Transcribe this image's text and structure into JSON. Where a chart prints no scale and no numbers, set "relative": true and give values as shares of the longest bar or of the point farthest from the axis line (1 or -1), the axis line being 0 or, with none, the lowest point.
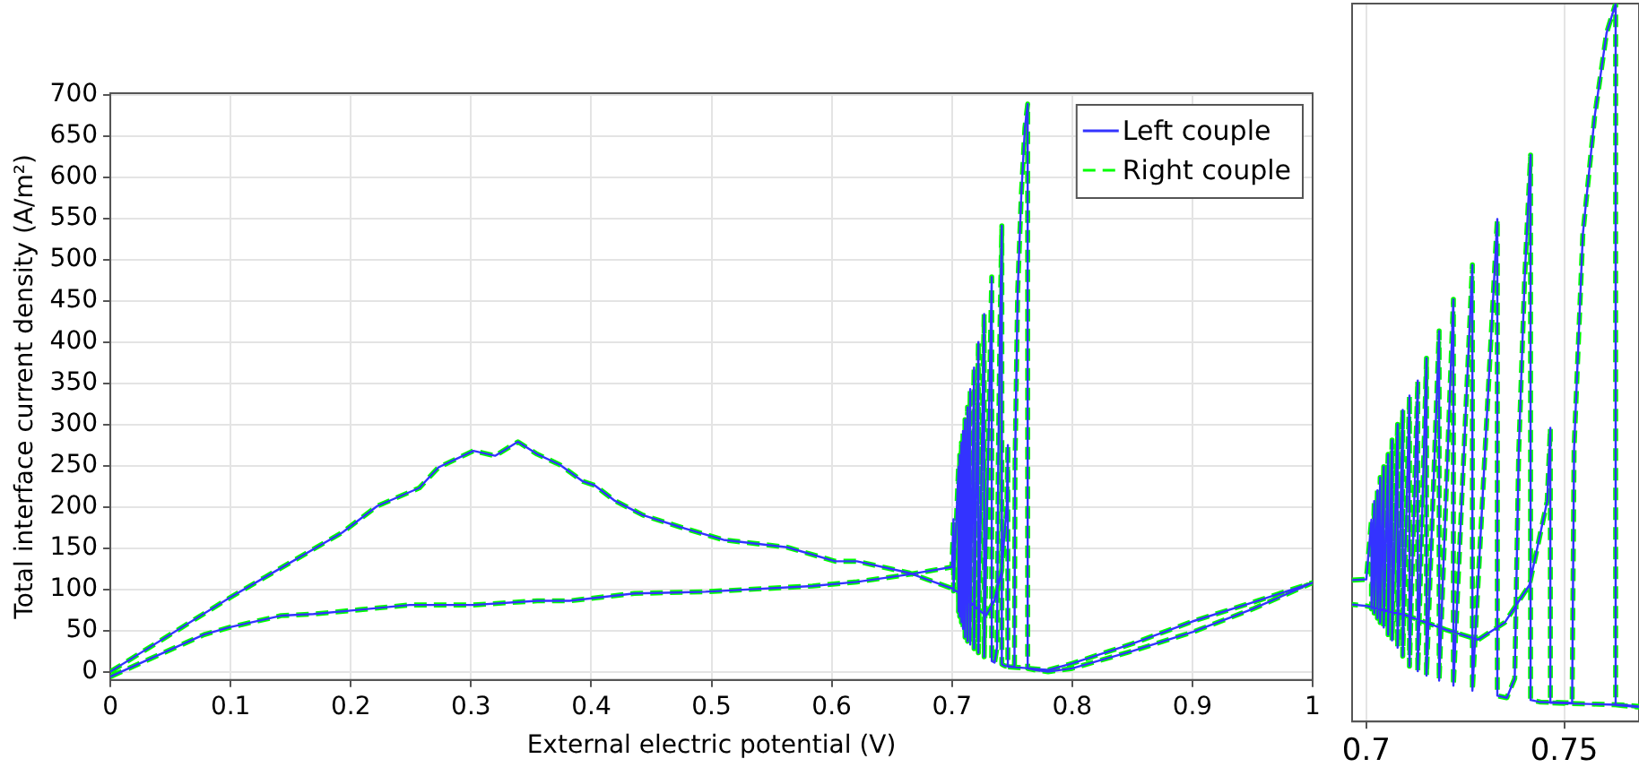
{
  "chart_data": [
    {
      "type": "line",
      "xlabel": "External electric potential (V)",
      "ylabel": "Total interface current density (A/m²)",
      "xlim": [
        0,
        1
      ],
      "ylim": [
        -10,
        702
      ],
      "xticks": [
        0,
        0.1,
        0.2,
        0.3,
        0.4,
        0.5,
        0.6,
        0.7,
        0.8,
        0.9,
        1
      ],
      "yticks": [
        0,
        50,
        100,
        150,
        200,
        250,
        300,
        350,
        400,
        450,
        500,
        550,
        600,
        650,
        700
      ],
      "grid": true,
      "legend": "top right",
      "series": [
        {
          "name": "Left couple",
          "color": "#3333ff",
          "line_style": "solid",
          "x": [
            0,
            0.078,
            0.0996,
            0.142,
            0.169,
            0.206,
            0.249,
            0.302,
            0.355,
            0.382,
            0.436,
            0.495,
            0.584,
            0.621,
            0.664,
            0.7,
            0.7013,
            0.7013,
            0.7055,
            0.7055,
            0.7065,
            0.7065,
            0.7079,
            0.7079,
            0.7092,
            0.7092,
            0.7109,
            0.7109,
            0.713,
            0.713,
            0.7152,
            0.7152,
            0.7184,
            0.7184,
            0.722,
            0.722,
            0.7268,
            0.7268,
            0.7331,
            0.7331,
            0.7355,
            0.7375,
            0.7385,
            0.74,
            0.7415,
            0.7415,
            0.744,
            0.752,
            0.7525,
            0.7547,
            0.7577,
            0.7607,
            0.763,
            0.763,
            0.77,
            0.78,
            0.8,
            0.85,
            0.9,
            0.95,
            1,
            0.95,
            0.9,
            0.85,
            0.8,
            0.78,
            0.765,
            0.7465,
            0.7465,
            0.7457,
            0.7412,
            0.735,
            0.7283,
            0.72,
            0.71,
            0.7,
            0.664,
            0.621,
            0.603,
            0.563,
            0.51,
            0.473,
            0.443,
            0.419,
            0.403,
            0.393,
            0.374,
            0.355,
            0.339,
            0.32,
            0.302,
            0.273,
            0.257,
            0.222,
            0.193,
            0.129,
            0.0996,
            0
          ],
          "values": [
            -6,
            45,
            54,
            68,
            70,
            75,
            81,
            81,
            86,
            86,
            95,
            97,
            104,
            109,
            118,
            127,
            185,
            98,
            249,
            73,
            263,
            67,
            278,
            60,
            292,
            52,
            306,
            42,
            321,
            37,
            343,
            33,
            369,
            28,
            400,
            23,
            434,
            18,
            479,
            13,
            11,
            30,
            250,
            420,
            541,
            9,
            7,
            6,
            255,
            463,
            579,
            660,
            689,
            4,
            2,
            0,
            4,
            25,
            48,
            76,
            108,
            84,
            61,
            34,
            10,
            2,
            4,
            6,
            275,
            203,
            121,
            85,
            68,
            78,
            92,
            101,
            120,
            134,
            134,
            151,
            160,
            176,
            190,
            208,
            226,
            231,
            251,
            264,
            279,
            262,
            268,
            248,
            223,
            201,
            169,
            115,
            90,
            0
          ]
        },
        {
          "name": "Right couple",
          "color": "#00ff00",
          "line_style": "dashed",
          "x": [
            0,
            0.078,
            0.0996,
            0.142,
            0.169,
            0.206,
            0.249,
            0.302,
            0.355,
            0.382,
            0.436,
            0.495,
            0.584,
            0.621,
            0.664,
            0.7,
            0.7013,
            0.7013,
            0.7055,
            0.7055,
            0.7065,
            0.7065,
            0.7079,
            0.7079,
            0.7092,
            0.7092,
            0.7109,
            0.7109,
            0.713,
            0.713,
            0.7152,
            0.7152,
            0.7184,
            0.7184,
            0.722,
            0.722,
            0.7268,
            0.7268,
            0.7331,
            0.7331,
            0.7355,
            0.7375,
            0.7385,
            0.74,
            0.7415,
            0.7415,
            0.744,
            0.752,
            0.7525,
            0.7547,
            0.7577,
            0.7607,
            0.763,
            0.763,
            0.77,
            0.78,
            0.8,
            0.85,
            0.9,
            0.95,
            1,
            0.95,
            0.9,
            0.85,
            0.8,
            0.78,
            0.765,
            0.7465,
            0.7465,
            0.7457,
            0.7412,
            0.735,
            0.7283,
            0.72,
            0.71,
            0.7,
            0.664,
            0.621,
            0.603,
            0.563,
            0.51,
            0.473,
            0.443,
            0.419,
            0.403,
            0.393,
            0.374,
            0.355,
            0.339,
            0.32,
            0.302,
            0.273,
            0.257,
            0.222,
            0.193,
            0.129,
            0.0996,
            0
          ],
          "values": [
            -6,
            45,
            54,
            68,
            70,
            75,
            81,
            81,
            86,
            86,
            95,
            97,
            104,
            109,
            118,
            127,
            185,
            98,
            249,
            73,
            263,
            67,
            278,
            60,
            292,
            52,
            306,
            42,
            321,
            37,
            343,
            33,
            369,
            28,
            400,
            23,
            434,
            18,
            479,
            13,
            11,
            30,
            250,
            420,
            541,
            9,
            7,
            6,
            255,
            463,
            579,
            660,
            689,
            4,
            2,
            0,
            4,
            25,
            48,
            76,
            108,
            84,
            61,
            34,
            10,
            2,
            4,
            6,
            275,
            203,
            121,
            85,
            68,
            78,
            92,
            101,
            120,
            134,
            134,
            151,
            160,
            176,
            190,
            208,
            226,
            231,
            251,
            264,
            279,
            262,
            268,
            248,
            223,
            201,
            169,
            115,
            90,
            0
          ]
        }
      ]
    },
    {
      "type": "line",
      "xlim": [
        0.6964,
        0.7689
      ],
      "xticks": [
        0.7,
        0.75
      ],
      "relative": true,
      "grid": "x",
      "tick_labels": "x",
      "series": [
        {
          "color": "#3333ff",
          "line_style": "solid",
          "x": [
            0.6964,
            0.7,
            0.7013,
            0.7013,
            0.702,
            0.702,
            0.7028,
            0.7028,
            0.7035,
            0.7035,
            0.7044,
            0.7044,
            0.7055,
            0.7055,
            0.7065,
            0.7065,
            0.7079,
            0.7079,
            0.7092,
            0.7092,
            0.7109,
            0.7109,
            0.713,
            0.713,
            0.7152,
            0.7152,
            0.7184,
            0.7184,
            0.722,
            0.722,
            0.7268,
            0.7268,
            0.7331,
            0.7331,
            0.7355,
            0.7375,
            0.7385,
            0.74,
            0.7415,
            0.7415,
            0.744,
            0.752,
            0.7525,
            0.7547,
            0.7577,
            0.7607,
            0.763,
            0.763,
            0.7689,
            0.7689,
            0.765,
            0.7465,
            0.7465,
            0.7457,
            0.7412,
            0.735,
            0.7283,
            0.72,
            0.71,
            0.7,
            0.6964
          ],
          "values": [
            0.197,
            0.198,
            0.281,
            0.157,
            0.307,
            0.151,
            0.322,
            0.144,
            0.34,
            0.138,
            0.355,
            0.131,
            0.372,
            0.121,
            0.392,
            0.113,
            0.414,
            0.103,
            0.434,
            0.091,
            0.454,
            0.077,
            0.475,
            0.07,
            0.506,
            0.064,
            0.544,
            0.057,
            0.588,
            0.05,
            0.636,
            0.043,
            0.7,
            0.036,
            0.033,
            0.06,
            0.374,
            0.616,
            0.789,
            0.03,
            0.027,
            0.026,
            0.381,
            0.678,
            0.843,
            0.959,
            1,
            0.023,
            0.02,
            0.021,
            0.023,
            0.026,
            0.409,
            0.307,
            0.19,
            0.138,
            0.114,
            0.128,
            0.148,
            0.161,
            0.163
          ]
        },
        {
          "color": "#00ff00",
          "line_style": "dashed",
          "x": [
            0.6964,
            0.7,
            0.7013,
            0.7013,
            0.702,
            0.702,
            0.7028,
            0.7028,
            0.7035,
            0.7035,
            0.7044,
            0.7044,
            0.7055,
            0.7055,
            0.7065,
            0.7065,
            0.7079,
            0.7079,
            0.7092,
            0.7092,
            0.7109,
            0.7109,
            0.713,
            0.713,
            0.7152,
            0.7152,
            0.7184,
            0.7184,
            0.722,
            0.722,
            0.7268,
            0.7268,
            0.7331,
            0.7331,
            0.7355,
            0.7375,
            0.7385,
            0.74,
            0.7415,
            0.7415,
            0.744,
            0.752,
            0.7525,
            0.7547,
            0.7577,
            0.7607,
            0.763,
            0.763,
            0.7689,
            0.7689,
            0.765,
            0.7465,
            0.7465,
            0.7457,
            0.7412,
            0.735,
            0.7283,
            0.72,
            0.71,
            0.7,
            0.6964
          ],
          "values": [
            0.197,
            0.198,
            0.281,
            0.157,
            0.307,
            0.151,
            0.322,
            0.144,
            0.34,
            0.138,
            0.355,
            0.131,
            0.372,
            0.121,
            0.392,
            0.113,
            0.414,
            0.103,
            0.434,
            0.091,
            0.454,
            0.077,
            0.475,
            0.07,
            0.506,
            0.064,
            0.544,
            0.057,
            0.588,
            0.05,
            0.636,
            0.043,
            0.7,
            0.036,
            0.033,
            0.06,
            0.374,
            0.616,
            0.789,
            0.03,
            0.027,
            0.026,
            0.381,
            0.678,
            0.843,
            0.959,
            1,
            0.023,
            0.02,
            0.021,
            0.023,
            0.026,
            0.409,
            0.307,
            0.19,
            0.138,
            0.114,
            0.128,
            0.148,
            0.161,
            0.163
          ]
        }
      ]
    }
  ]
}
